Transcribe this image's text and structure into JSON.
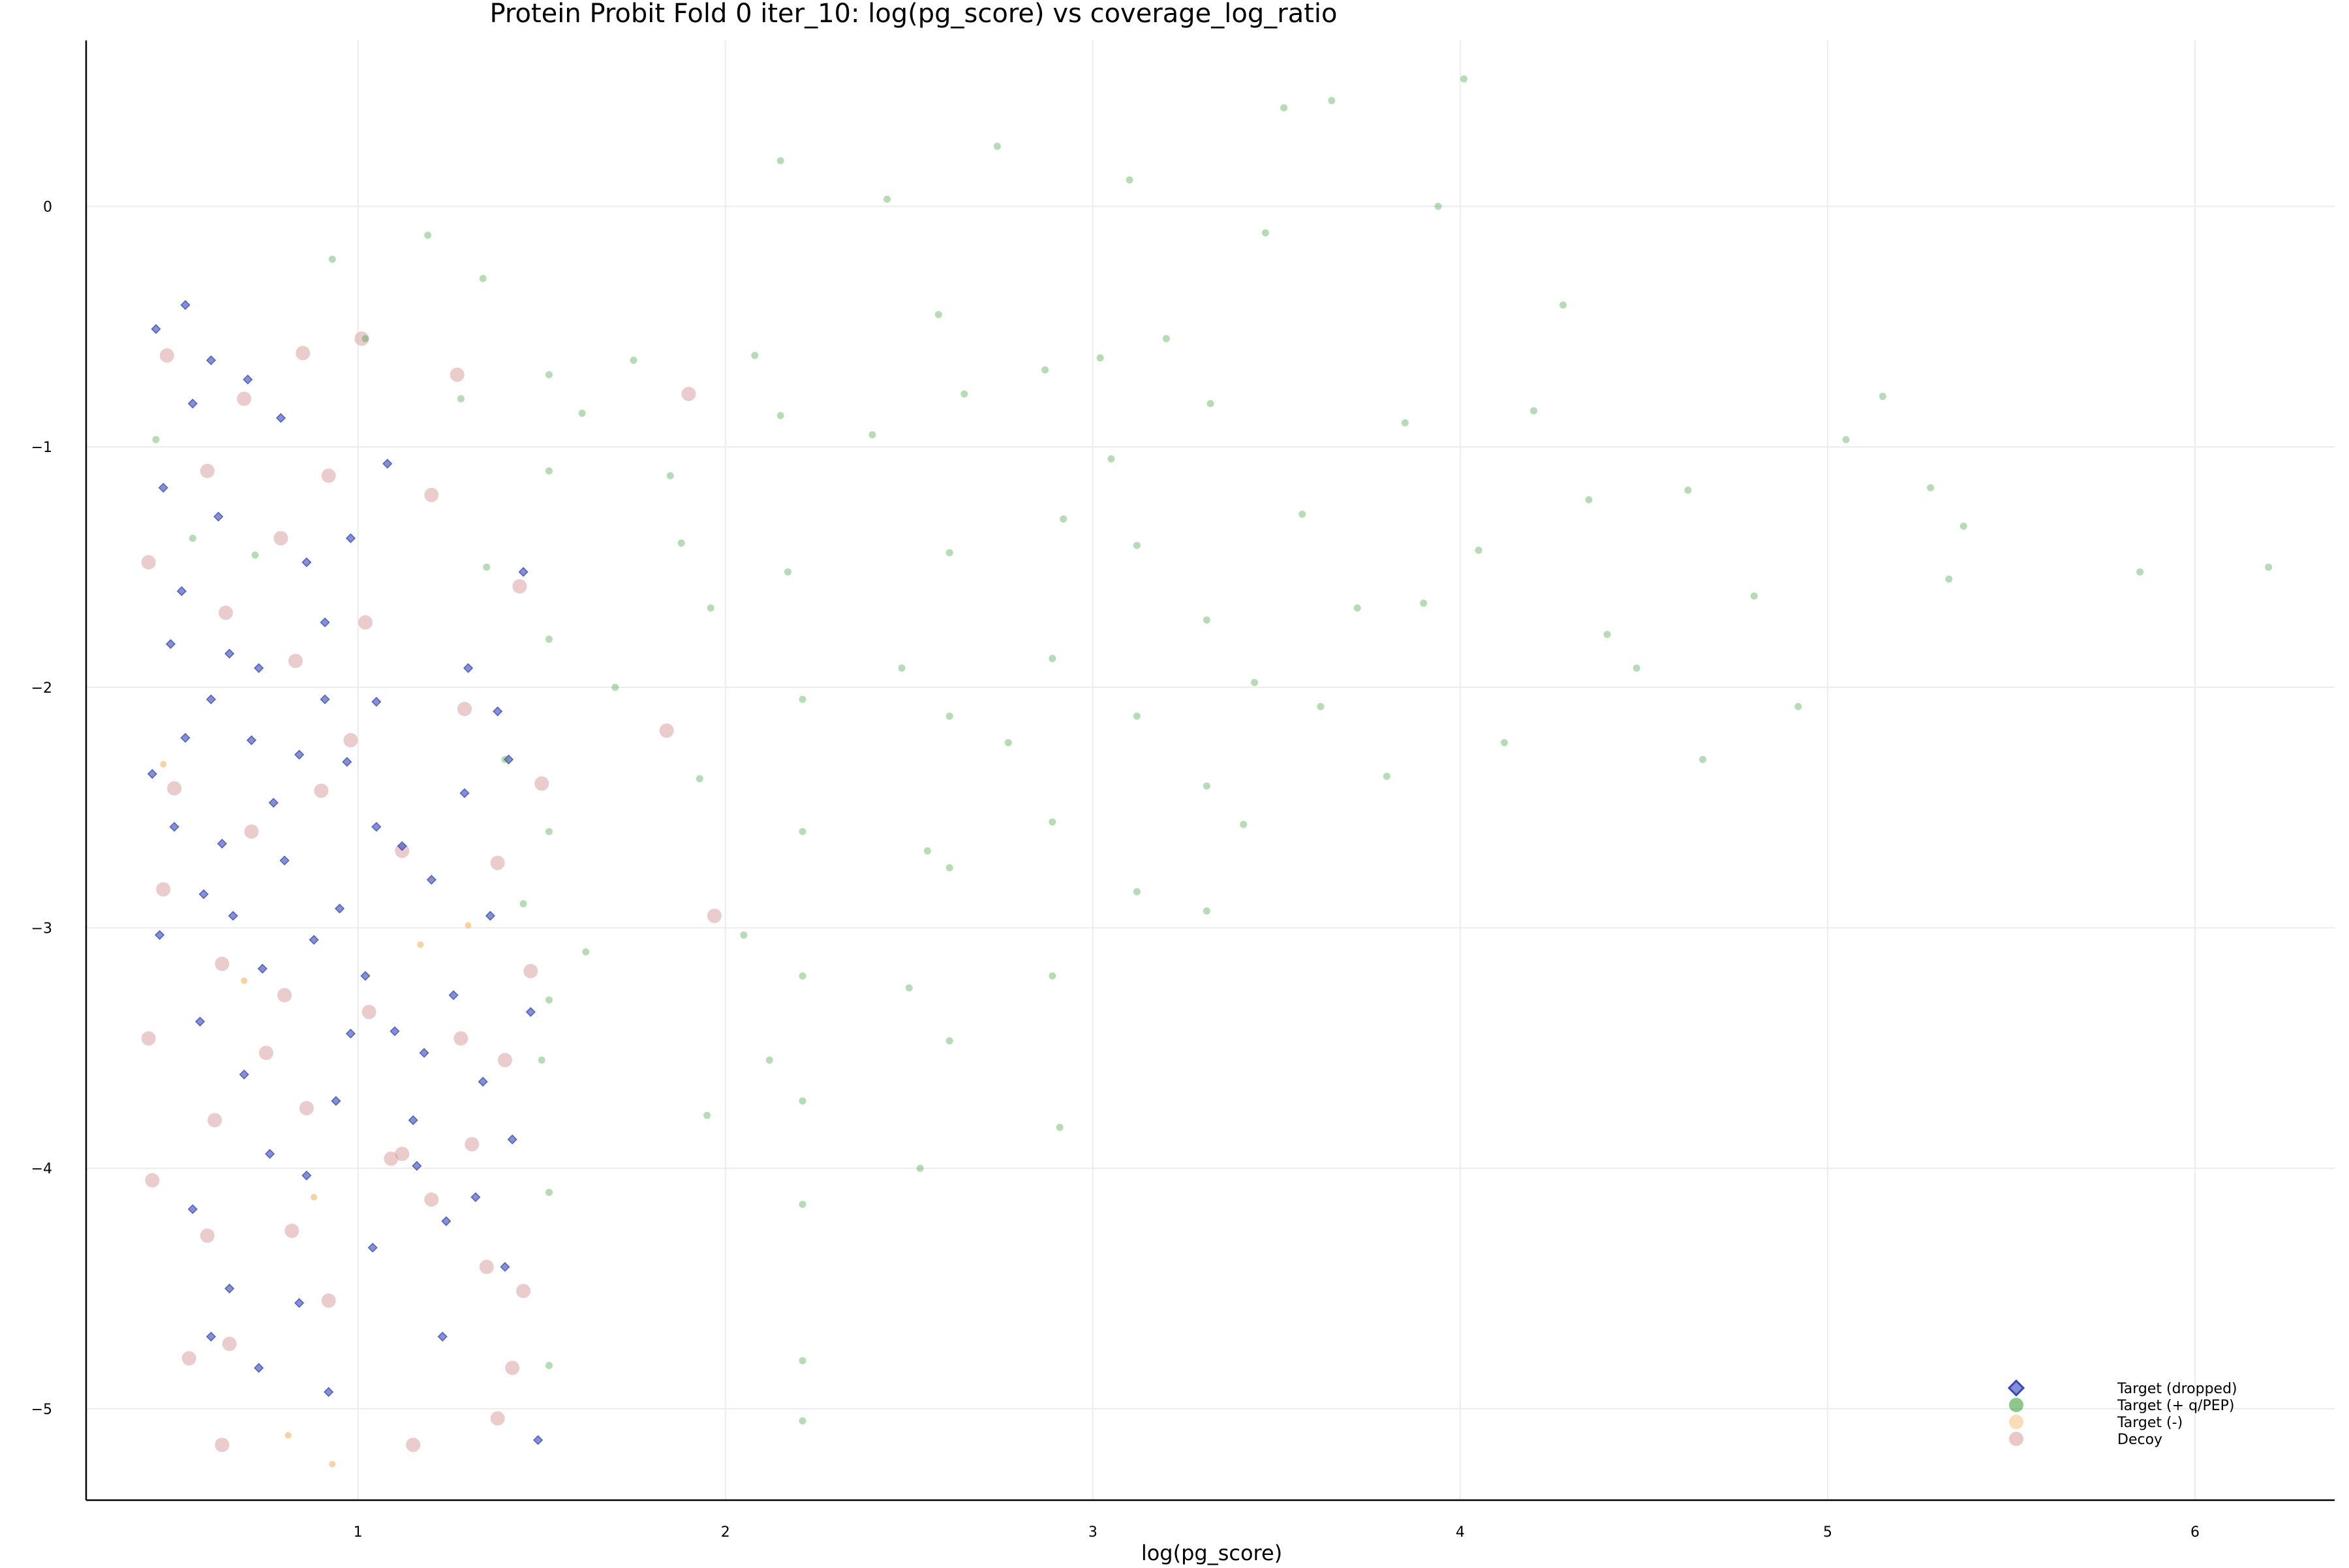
{
  "chart_data": {
    "type": "scatter",
    "title": "Protein Probit Fold 0 iter_10: log(pg_score) vs coverage_log_ratio",
    "xlabel": "log(pg_score)",
    "ylabel": "",
    "xlim": [
      0.26,
      6.38
    ],
    "ylim": [
      -5.38,
      0.69
    ],
    "xticks": [
      1,
      2,
      3,
      4,
      5,
      6
    ],
    "yticks": [
      0,
      -1,
      -2,
      -3,
      -4,
      -5
    ],
    "grid": true,
    "legend_position": "bottom-right",
    "series": [
      {
        "name": "Target (dropped)",
        "color": "#3446b8",
        "marker": "diamond",
        "points": [
          [
            0.45,
            -0.51
          ],
          [
            0.53,
            -0.41
          ],
          [
            0.55,
            -0.82
          ],
          [
            0.47,
            -1.17
          ],
          [
            0.62,
            -1.29
          ],
          [
            0.7,
            -0.72
          ],
          [
            0.79,
            -0.88
          ],
          [
            0.49,
            -1.82
          ],
          [
            0.53,
            -2.21
          ],
          [
            0.6,
            -2.05
          ],
          [
            0.65,
            -1.86
          ],
          [
            0.71,
            -2.22
          ],
          [
            0.77,
            -2.48
          ],
          [
            0.84,
            -2.28
          ],
          [
            0.91,
            -1.73
          ],
          [
            0.97,
            -2.31
          ],
          [
            1.05,
            -2.58
          ],
          [
            1.12,
            -2.66
          ],
          [
            1.2,
            -2.8
          ],
          [
            1.29,
            -2.44
          ],
          [
            0.44,
            -2.36
          ],
          [
            0.5,
            -2.58
          ],
          [
            0.58,
            -2.86
          ],
          [
            0.66,
            -2.95
          ],
          [
            0.74,
            -3.17
          ],
          [
            0.8,
            -2.72
          ],
          [
            0.88,
            -3.05
          ],
          [
            0.95,
            -2.92
          ],
          [
            1.02,
            -3.2
          ],
          [
            1.1,
            -3.43
          ],
          [
            1.18,
            -3.52
          ],
          [
            1.26,
            -3.28
          ],
          [
            1.34,
            -3.64
          ],
          [
            1.42,
            -3.88
          ],
          [
            0.46,
            -3.03
          ],
          [
            0.57,
            -3.39
          ],
          [
            0.69,
            -3.61
          ],
          [
            0.76,
            -3.94
          ],
          [
            0.86,
            -4.03
          ],
          [
            0.94,
            -3.72
          ],
          [
            1.04,
            -4.33
          ],
          [
            1.16,
            -3.99
          ],
          [
            1.24,
            -4.22
          ],
          [
            1.32,
            -4.12
          ],
          [
            1.4,
            -4.41
          ],
          [
            0.55,
            -4.17
          ],
          [
            0.65,
            -4.5
          ],
          [
            0.73,
            -4.83
          ],
          [
            0.84,
            -4.56
          ],
          [
            0.92,
            -4.93
          ],
          [
            1.23,
            -4.7
          ],
          [
            1.49,
            -5.13
          ],
          [
            0.6,
            -4.7
          ],
          [
            1.38,
            -2.1
          ],
          [
            1.45,
            -1.52
          ],
          [
            1.36,
            -2.95
          ],
          [
            1.47,
            -3.35
          ],
          [
            1.3,
            -1.92
          ],
          [
            0.98,
            -1.38
          ],
          [
            1.08,
            -1.07
          ],
          [
            0.73,
            -1.92
          ],
          [
            0.86,
            -1.48
          ],
          [
            1.15,
            -3.8
          ],
          [
            0.98,
            -3.44
          ],
          [
            0.63,
            -2.65
          ],
          [
            1.41,
            -2.3
          ],
          [
            0.52,
            -1.6
          ],
          [
            0.6,
            -0.64
          ],
          [
            0.91,
            -2.05
          ],
          [
            1.05,
            -2.06
          ]
        ]
      },
      {
        "name": "Target (+ q/PEP)",
        "color": "#2e9a2e",
        "marker": "circle",
        "points": [
          [
            0.45,
            -0.97
          ],
          [
            0.55,
            -1.38
          ],
          [
            0.72,
            -1.45
          ],
          [
            0.93,
            -0.22
          ],
          [
            1.02,
            -0.55
          ],
          [
            1.19,
            -0.12
          ],
          [
            1.28,
            -0.8
          ],
          [
            1.35,
            -1.5
          ],
          [
            1.4,
            -2.3
          ],
          [
            1.45,
            -2.9
          ],
          [
            1.5,
            -3.55
          ],
          [
            1.52,
            -1.1
          ],
          [
            1.52,
            -1.8
          ],
          [
            1.52,
            -2.6
          ],
          [
            1.52,
            -3.3
          ],
          [
            1.52,
            -4.1
          ],
          [
            1.52,
            -4.82
          ],
          [
            1.52,
            -0.7
          ],
          [
            1.34,
            -0.3
          ],
          [
            1.61,
            -0.86
          ],
          [
            1.75,
            -0.64
          ],
          [
            1.85,
            -1.12
          ],
          [
            1.96,
            -1.67
          ],
          [
            2.08,
            -0.62
          ],
          [
            2.15,
            -0.87
          ],
          [
            2.17,
            -1.52
          ],
          [
            2.21,
            -2.05
          ],
          [
            2.21,
            -2.6
          ],
          [
            2.21,
            -3.2
          ],
          [
            2.21,
            -3.72
          ],
          [
            2.21,
            -4.15
          ],
          [
            2.21,
            -4.8
          ],
          [
            2.21,
            -5.05
          ],
          [
            2.15,
            0.19
          ],
          [
            2.44,
            0.03
          ],
          [
            2.58,
            -0.45
          ],
          [
            2.65,
            -0.78
          ],
          [
            2.61,
            -1.44
          ],
          [
            2.61,
            -2.12
          ],
          [
            2.61,
            -2.75
          ],
          [
            2.61,
            -3.47
          ],
          [
            2.53,
            -4.0
          ],
          [
            2.74,
            0.25
          ],
          [
            2.87,
            -0.68
          ],
          [
            2.92,
            -1.3
          ],
          [
            2.89,
            -1.88
          ],
          [
            2.89,
            -2.56
          ],
          [
            2.89,
            -3.2
          ],
          [
            2.91,
            -3.83
          ],
          [
            3.02,
            -0.63
          ],
          [
            3.1,
            0.11
          ],
          [
            3.12,
            -1.41
          ],
          [
            3.12,
            -2.12
          ],
          [
            3.12,
            -2.85
          ],
          [
            3.32,
            -0.82
          ],
          [
            3.31,
            -1.72
          ],
          [
            3.31,
            -2.41
          ],
          [
            3.31,
            -2.93
          ],
          [
            3.47,
            -0.11
          ],
          [
            3.52,
            0.41
          ],
          [
            3.57,
            -1.28
          ],
          [
            3.62,
            -2.08
          ],
          [
            3.65,
            0.44
          ],
          [
            3.72,
            -1.67
          ],
          [
            3.8,
            -2.37
          ],
          [
            3.94,
            0.0
          ],
          [
            4.01,
            0.53
          ],
          [
            4.05,
            -1.43
          ],
          [
            4.12,
            -2.23
          ],
          [
            4.2,
            -0.85
          ],
          [
            4.35,
            -1.22
          ],
          [
            4.48,
            -1.92
          ],
          [
            4.62,
            -1.18
          ],
          [
            4.66,
            -2.3
          ],
          [
            4.8,
            -1.62
          ],
          [
            4.92,
            -2.08
          ],
          [
            5.05,
            -0.97
          ],
          [
            5.15,
            -0.79
          ],
          [
            5.28,
            -1.17
          ],
          [
            5.33,
            -1.55
          ],
          [
            5.37,
            -1.33
          ],
          [
            5.85,
            -1.52
          ],
          [
            6.2,
            -1.5
          ],
          [
            1.88,
            -1.4
          ],
          [
            1.93,
            -2.38
          ],
          [
            2.05,
            -3.03
          ],
          [
            2.12,
            -3.55
          ],
          [
            2.4,
            -0.95
          ],
          [
            2.48,
            -1.92
          ],
          [
            2.55,
            -2.68
          ],
          [
            2.5,
            -3.25
          ],
          [
            2.77,
            -2.23
          ],
          [
            3.05,
            -1.05
          ],
          [
            3.2,
            -0.55
          ],
          [
            3.44,
            -1.98
          ],
          [
            3.41,
            -2.57
          ],
          [
            3.85,
            -0.9
          ],
          [
            3.9,
            -1.65
          ],
          [
            4.28,
            -0.41
          ],
          [
            4.4,
            -1.78
          ],
          [
            1.7,
            -2.0
          ],
          [
            1.62,
            -3.1
          ],
          [
            1.95,
            -3.78
          ]
        ]
      },
      {
        "name": "Target (-)",
        "color": "#f5c07a",
        "marker": "circle",
        "points": [
          [
            0.88,
            -4.12
          ],
          [
            0.81,
            -5.11
          ],
          [
            0.93,
            -5.23
          ],
          [
            0.69,
            -3.22
          ],
          [
            1.17,
            -3.07
          ],
          [
            1.3,
            -2.99
          ],
          [
            0.47,
            -2.32
          ]
        ]
      },
      {
        "name": "Decoy",
        "color": "#d89a9a",
        "marker": "circle",
        "points": [
          [
            0.48,
            -0.62
          ],
          [
            0.69,
            -0.8
          ],
          [
            0.85,
            -0.61
          ],
          [
            1.01,
            -0.55
          ],
          [
            0.59,
            -1.1
          ],
          [
            0.79,
            -1.38
          ],
          [
            0.92,
            -1.12
          ],
          [
            1.2,
            -1.2
          ],
          [
            0.43,
            -1.48
          ],
          [
            0.64,
            -1.69
          ],
          [
            0.83,
            -1.89
          ],
          [
            1.02,
            -1.73
          ],
          [
            1.29,
            -2.09
          ],
          [
            0.5,
            -2.42
          ],
          [
            0.71,
            -2.6
          ],
          [
            0.9,
            -2.43
          ],
          [
            1.12,
            -2.68
          ],
          [
            1.38,
            -2.73
          ],
          [
            0.47,
            -2.84
          ],
          [
            0.63,
            -3.15
          ],
          [
            0.8,
            -3.28
          ],
          [
            1.03,
            -3.35
          ],
          [
            1.28,
            -3.46
          ],
          [
            0.43,
            -3.46
          ],
          [
            0.61,
            -3.8
          ],
          [
            0.86,
            -3.75
          ],
          [
            1.12,
            -3.94
          ],
          [
            1.31,
            -3.9
          ],
          [
            0.44,
            -4.05
          ],
          [
            0.59,
            -4.28
          ],
          [
            0.82,
            -4.26
          ],
          [
            1.2,
            -4.13
          ],
          [
            1.45,
            -4.51
          ],
          [
            0.65,
            -4.73
          ],
          [
            0.92,
            -4.55
          ],
          [
            0.54,
            -4.79
          ],
          [
            0.63,
            -5.15
          ],
          [
            1.15,
            -5.15
          ],
          [
            1.38,
            -5.04
          ],
          [
            1.42,
            -4.83
          ],
          [
            1.35,
            -4.41
          ],
          [
            1.47,
            -3.18
          ],
          [
            1.5,
            -2.4
          ],
          [
            1.44,
            -1.58
          ],
          [
            1.9,
            -0.78
          ],
          [
            1.84,
            -2.18
          ],
          [
            1.97,
            -2.95
          ],
          [
            1.27,
            -0.7
          ],
          [
            1.09,
            -3.96
          ],
          [
            0.75,
            -3.52
          ],
          [
            0.98,
            -2.22
          ],
          [
            1.4,
            -3.55
          ]
        ]
      }
    ]
  }
}
